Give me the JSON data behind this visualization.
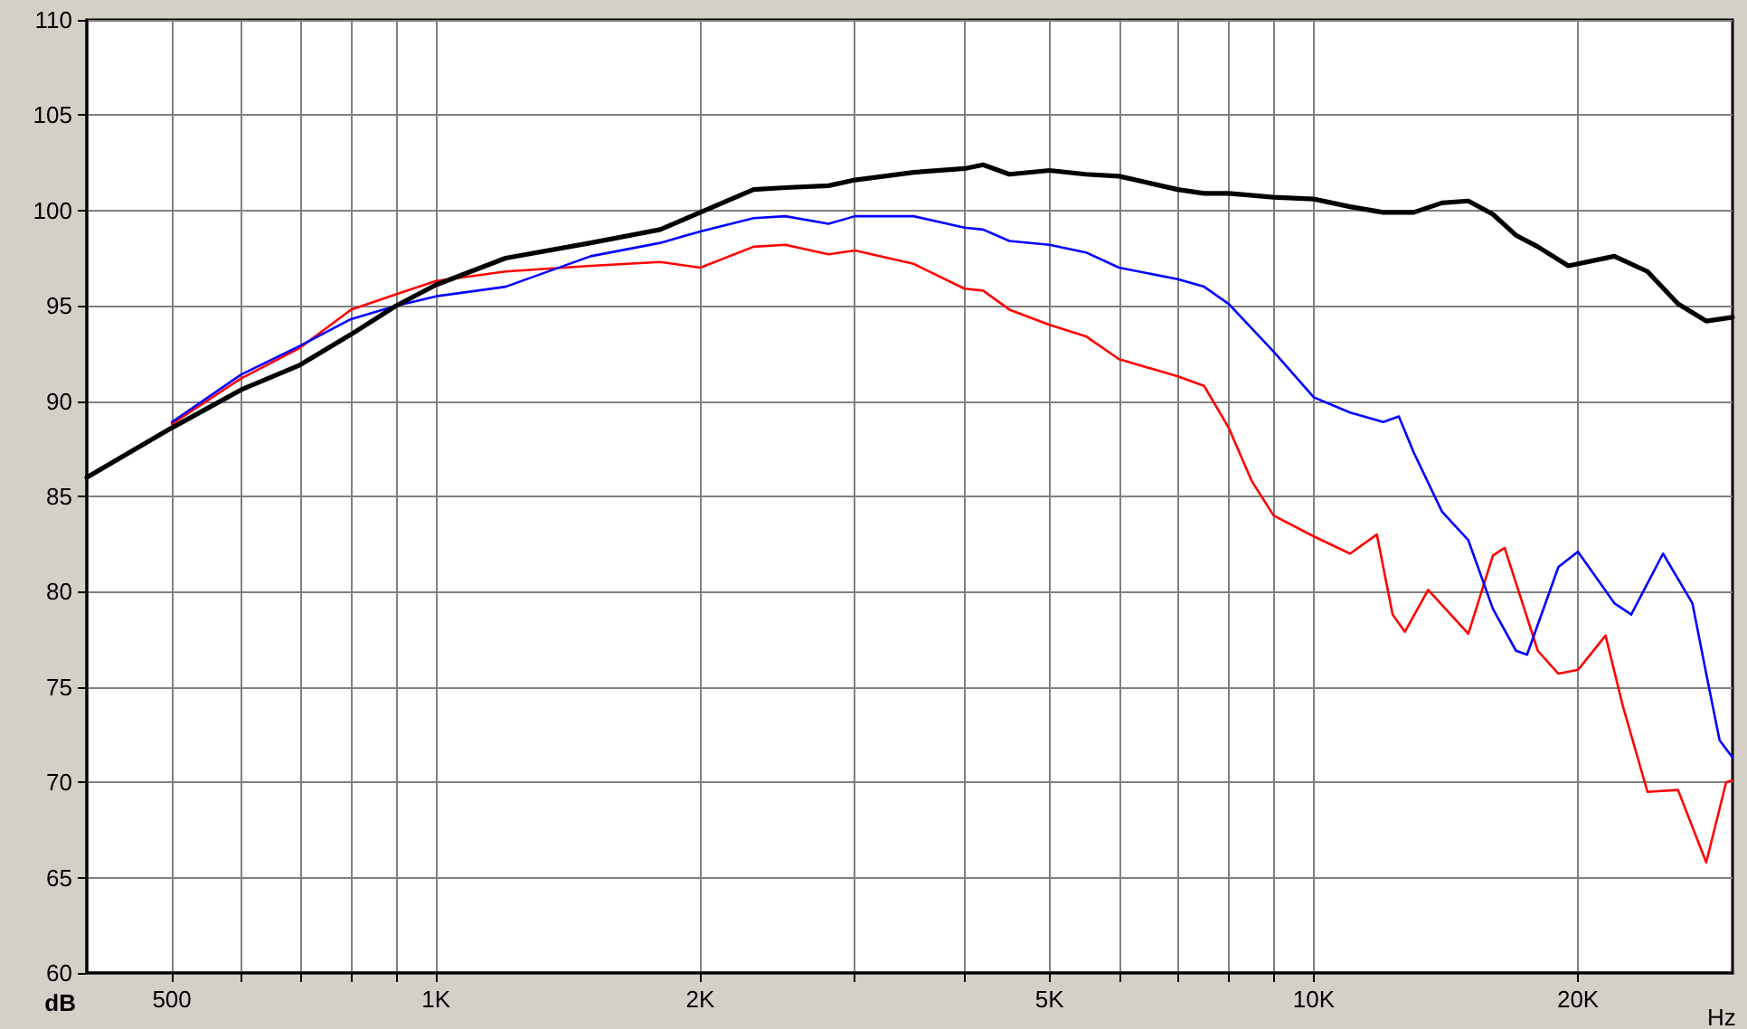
{
  "chart_data": {
    "type": "line",
    "xlabel": "Hz",
    "ylabel": "dB",
    "log": "x",
    "grid": true,
    "marker": "none",
    "line_style": "solid",
    "xlim": [
      400,
      30000
    ],
    "ylim": [
      60,
      110
    ],
    "xticks": [
      {
        "value": 500,
        "label": "500"
      },
      {
        "value": 600,
        "label": null
      },
      {
        "value": 700,
        "label": null
      },
      {
        "value": 800,
        "label": null
      },
      {
        "value": 900,
        "label": null
      },
      {
        "value": 1000,
        "label": "1K"
      },
      {
        "value": 2000,
        "label": "2K"
      },
      {
        "value": 3000,
        "label": null
      },
      {
        "value": 4000,
        "label": null
      },
      {
        "value": 5000,
        "label": "5K"
      },
      {
        "value": 6000,
        "label": null
      },
      {
        "value": 7000,
        "label": null
      },
      {
        "value": 8000,
        "label": null
      },
      {
        "value": 9000,
        "label": null
      },
      {
        "value": 10000,
        "label": "10K"
      },
      {
        "value": 20000,
        "label": "20K"
      }
    ],
    "yticks": [
      60,
      65,
      70,
      75,
      80,
      85,
      90,
      95,
      100,
      105,
      110
    ],
    "series": [
      {
        "color": "#000000",
        "x": [
          400,
          500,
          600,
          700,
          800,
          900,
          1000,
          1200,
          1500,
          1800,
          2000,
          2300,
          2500,
          2800,
          3000,
          3500,
          4000,
          4200,
          4500,
          5000,
          5500,
          6000,
          7000,
          7500,
          8000,
          9000,
          10000,
          11000,
          12000,
          13000,
          14000,
          15000,
          16000,
          17000,
          18000,
          19500,
          22000,
          24000,
          26000,
          28000,
          30000
        ],
        "values": [
          86.0,
          88.6,
          90.6,
          91.9,
          93.5,
          95.0,
          96.1,
          97.5,
          98.3,
          99.0,
          99.9,
          101.1,
          101.2,
          101.3,
          101.6,
          102.0,
          102.2,
          102.4,
          101.9,
          102.1,
          101.9,
          101.8,
          101.1,
          100.9,
          100.9,
          100.7,
          100.6,
          100.2,
          99.9,
          99.9,
          100.4,
          100.5,
          99.8,
          98.7,
          98.1,
          97.1,
          97.6,
          96.8,
          95.1,
          94.2,
          94.4
        ]
      },
      {
        "color": "#0000ff",
        "x": [
          500,
          600,
          700,
          800,
          900,
          1000,
          1200,
          1500,
          1800,
          2000,
          2300,
          2500,
          2800,
          3000,
          3500,
          4000,
          4200,
          4500,
          5000,
          5500,
          6000,
          7000,
          7500,
          8000,
          9000,
          10000,
          11000,
          12000,
          12500,
          13000,
          14000,
          15000,
          16000,
          17000,
          17500,
          19000,
          20000,
          22000,
          23000,
          25000,
          27000,
          28000,
          29000,
          30000
        ],
        "values": [
          88.9,
          91.4,
          92.9,
          94.3,
          95.0,
          95.5,
          96.0,
          97.6,
          98.3,
          98.9,
          99.6,
          99.7,
          99.3,
          99.7,
          99.7,
          99.1,
          99.0,
          98.4,
          98.2,
          97.8,
          97.0,
          96.4,
          96.0,
          95.1,
          92.6,
          90.2,
          89.4,
          88.9,
          89.2,
          87.3,
          84.2,
          82.7,
          79.1,
          76.9,
          76.7,
          81.3,
          82.1,
          79.4,
          78.8,
          82.0,
          79.4,
          75.7,
          72.2,
          71.3
        ]
      },
      {
        "color": "#ff0000",
        "x": [
          500,
          600,
          700,
          800,
          900,
          1000,
          1200,
          1500,
          1800,
          2000,
          2300,
          2500,
          2800,
          3000,
          3500,
          4000,
          4200,
          4500,
          5000,
          5500,
          6000,
          7000,
          7500,
          8000,
          8500,
          9000,
          10000,
          11000,
          11800,
          12300,
          12700,
          13500,
          15000,
          16000,
          16500,
          18000,
          19000,
          20000,
          21500,
          22500,
          24000,
          26000,
          28000,
          29500,
          30000
        ],
        "values": [
          88.8,
          91.2,
          92.8,
          94.8,
          95.6,
          96.3,
          96.8,
          97.1,
          97.3,
          97.0,
          98.1,
          98.2,
          97.7,
          97.9,
          97.2,
          95.9,
          95.8,
          94.8,
          94.0,
          93.4,
          92.2,
          91.3,
          90.8,
          88.6,
          85.8,
          84.0,
          82.9,
          82.0,
          83.0,
          78.8,
          77.9,
          80.1,
          77.8,
          81.9,
          82.3,
          76.9,
          75.7,
          75.9,
          77.7,
          74.0,
          69.5,
          69.6,
          65.8,
          70.0,
          70.1
        ]
      }
    ]
  }
}
